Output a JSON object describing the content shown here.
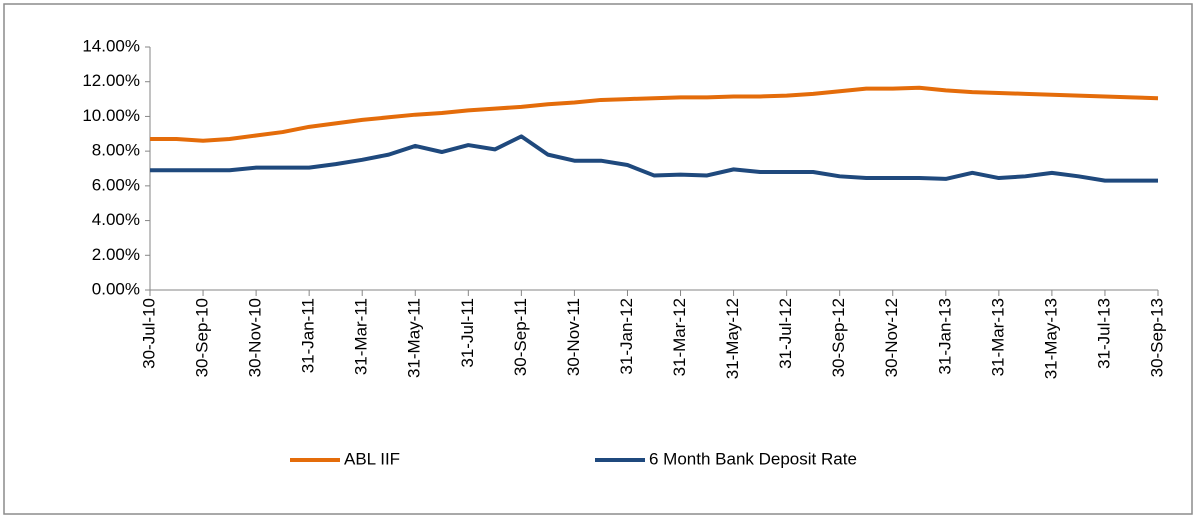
{
  "chart_data": {
    "type": "line",
    "categories": [
      "30-Jul-10",
      null,
      "30-Sep-10",
      null,
      "30-Nov-10",
      null,
      "31-Jan-11",
      null,
      "31-Mar-11",
      null,
      "31-May-11",
      null,
      "31-Jul-11",
      null,
      "30-Sep-11",
      null,
      "30-Nov-11",
      null,
      "31-Jan-12",
      null,
      "31-Mar-12",
      null,
      "31-May-12",
      null,
      "31-Jul-12",
      null,
      "30-Sep-12",
      null,
      "30-Nov-12",
      null,
      "31-Jan-13",
      null,
      "31-Mar-13",
      null,
      "31-May-13",
      null,
      "31-Jul-13",
      null,
      "30-Sep-13"
    ],
    "series": [
      {
        "name": "ABL IIF",
        "color": "#e46c0a",
        "values": [
          8.7,
          8.7,
          8.6,
          8.7,
          8.9,
          9.1,
          9.4,
          9.6,
          9.8,
          9.95,
          10.1,
          10.2,
          10.35,
          10.45,
          10.55,
          10.7,
          10.8,
          10.95,
          11.0,
          11.05,
          11.1,
          11.1,
          11.15,
          11.15,
          11.2,
          11.3,
          11.45,
          11.6,
          11.6,
          11.65,
          11.5,
          11.4,
          11.35,
          11.3,
          11.25,
          11.2,
          11.15,
          11.1,
          11.05
        ]
      },
      {
        "name": "6 Month Bank Deposit Rate",
        "color": "#1f497d",
        "values": [
          6.9,
          6.9,
          6.9,
          6.9,
          7.05,
          7.05,
          7.05,
          7.25,
          7.5,
          7.8,
          8.3,
          7.95,
          8.35,
          8.1,
          8.85,
          7.8,
          7.45,
          7.45,
          7.2,
          6.6,
          6.65,
          6.6,
          6.95,
          6.8,
          6.8,
          6.8,
          6.55,
          6.45,
          6.45,
          6.45,
          6.4,
          6.75,
          6.45,
          6.55,
          6.75,
          6.55,
          6.3,
          6.3,
          6.3
        ]
      }
    ],
    "ylim": [
      0,
      14
    ],
    "yticks": [
      {
        "value": 0,
        "label": "0.00%"
      },
      {
        "value": 2,
        "label": "2.00%"
      },
      {
        "value": 4,
        "label": "4.00%"
      },
      {
        "value": 6,
        "label": "6.00%"
      },
      {
        "value": 8,
        "label": "8.00%"
      },
      {
        "value": 10,
        "label": "10.00%"
      },
      {
        "value": 12,
        "label": "12.00%"
      },
      {
        "value": 14,
        "label": "14.00%"
      }
    ],
    "legend": "bottom",
    "grid": false
  }
}
